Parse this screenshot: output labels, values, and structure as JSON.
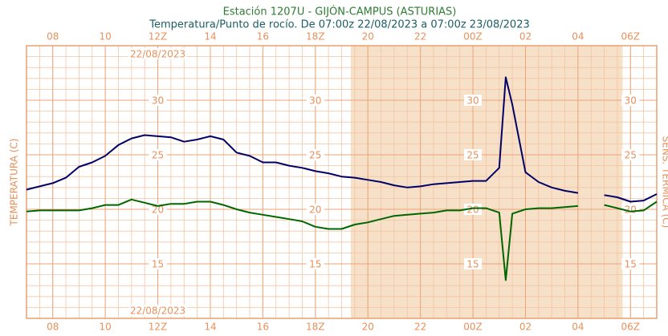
{
  "chart_data": {
    "type": "line",
    "title": "Estación 1207U - GIJÓN-CAMPUS (ASTURIAS)",
    "subtitle": "Temperatura/Punto de rocío. De 07:00z 22/08/2023 a 07:00z 23/08/2023",
    "y_label": "TEMPERATURA (C)",
    "y2_label": "SENS. TÉRMICA (C)",
    "date_label": "22/08/2023",
    "x": [
      7,
      7.5,
      8,
      8.5,
      9,
      9.5,
      10,
      10.5,
      11,
      11.5,
      12,
      12.5,
      13,
      13.5,
      14,
      14.5,
      15,
      15.5,
      16,
      16.5,
      17,
      17.5,
      18,
      18.5,
      19,
      19.5,
      20,
      20.5,
      21,
      21.5,
      22,
      22.5,
      23,
      23.5,
      24,
      24.5,
      25,
      25.25,
      25.5,
      26,
      26.5,
      27,
      27.5,
      28,
      28.5,
      29,
      29.5,
      30,
      30.5,
      31
    ],
    "series": [
      {
        "color": "#000066",
        "values": [
          21.8,
          22.1,
          22.4,
          22.9,
          23.9,
          24.3,
          24.9,
          25.9,
          26.5,
          26.8,
          26.7,
          26.6,
          26.2,
          26.4,
          26.7,
          26.4,
          25.2,
          24.9,
          24.3,
          24.3,
          24.0,
          23.8,
          23.5,
          23.3,
          23.0,
          22.9,
          22.7,
          22.5,
          22.2,
          22.0,
          22.1,
          22.3,
          22.4,
          22.5,
          22.6,
          22.6,
          23.8,
          32.1,
          29.6,
          23.4,
          22.5,
          22.0,
          21.7,
          21.5,
          null,
          21.3,
          21.1,
          20.7,
          20.8,
          21.4
        ]
      },
      {
        "color": "#006600",
        "values": [
          19.8,
          19.9,
          19.9,
          19.9,
          19.9,
          20.1,
          20.4,
          20.4,
          20.9,
          20.6,
          20.3,
          20.5,
          20.5,
          20.7,
          20.7,
          20.4,
          20.0,
          19.7,
          19.5,
          19.3,
          19.1,
          18.9,
          18.4,
          18.2,
          18.2,
          18.6,
          18.8,
          19.1,
          19.4,
          19.5,
          19.6,
          19.7,
          19.9,
          19.9,
          20.1,
          20.1,
          19.7,
          13.5,
          19.6,
          20.0,
          20.1,
          20.1,
          20.2,
          20.3,
          null,
          20.4,
          20.1,
          19.8,
          19.9,
          20.7
        ]
      }
    ],
    "night_xrange": [
      19.35,
      29.7
    ],
    "night_color": "#f6e0c8",
    "xlim": [
      7,
      31
    ],
    "xticks": [
      {
        "value": 8,
        "label": "08"
      },
      10,
      {
        "value": 12,
        "label": "12Z"
      },
      14,
      16,
      {
        "value": 18,
        "label": "18Z"
      },
      20,
      22,
      {
        "value": 24,
        "label": "00Z"
      },
      {
        "value": 26,
        "label": "02"
      },
      {
        "value": 28,
        "label": "04"
      },
      {
        "value": 30,
        "label": "06Z"
      }
    ],
    "ylim": [
      10,
      35
    ],
    "yticks": [
      15,
      20,
      25,
      30
    ],
    "ytick_label_x": [
      12,
      18,
      24,
      30
    ],
    "grid": true
  }
}
